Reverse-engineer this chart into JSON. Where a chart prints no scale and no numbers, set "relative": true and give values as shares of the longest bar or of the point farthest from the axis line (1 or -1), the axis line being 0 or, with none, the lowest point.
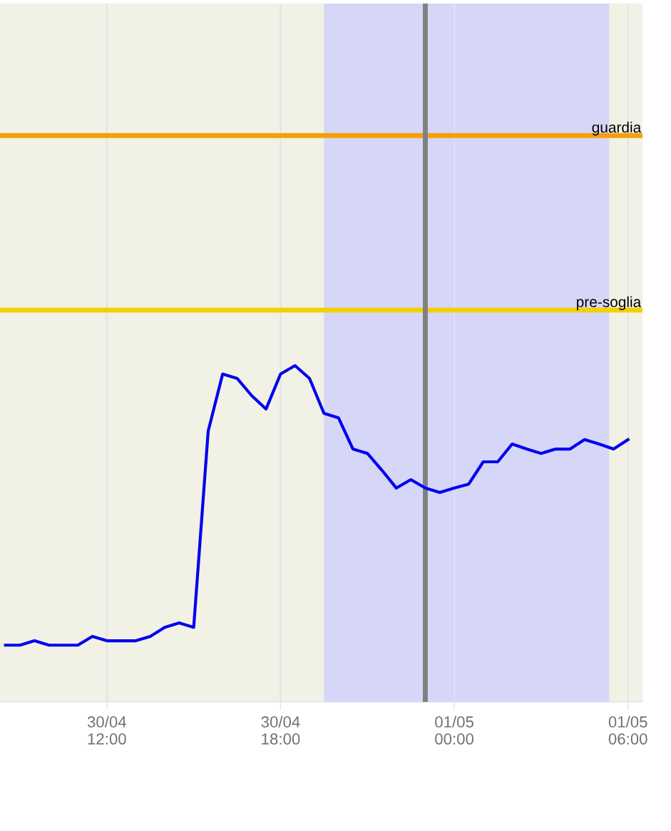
{
  "chart_data": {
    "type": "line",
    "relative": true,
    "categories": [
      null,
      null,
      null,
      null,
      null,
      null,
      null,
      "30/04\n12:00",
      null,
      null,
      null,
      null,
      null,
      null,
      null,
      null,
      null,
      null,
      null,
      "30/04\n18:00",
      null,
      null,
      null,
      null,
      null,
      null,
      null,
      null,
      null,
      null,
      null,
      "01/05\n00:00",
      null,
      null,
      null,
      null,
      null,
      null,
      null,
      null,
      null,
      null,
      null,
      "01/05\n06:00"
    ],
    "series": [
      {
        "color": "#0000ee",
        "values": [
          0.169,
          0.169,
          0.182,
          0.169,
          0.169,
          0.169,
          0.195,
          0.182,
          0.182,
          0.182,
          0.195,
          0.222,
          0.235,
          0.222,
          0.805,
          0.975,
          0.962,
          0.911,
          0.871,
          0.975,
          1,
          0.962,
          0.858,
          0.845,
          0.752,
          0.739,
          0.689,
          0.636,
          0.661,
          0.636,
          0.623,
          0.636,
          0.648,
          0.714,
          0.714,
          0.767,
          0.752,
          0.739,
          0.752,
          0.752,
          0.78,
          0.767,
          0.752,
          0.78
        ]
      }
    ],
    "ref_lines": [
      {
        "axis": "y",
        "value": 1.684,
        "label": "guardia",
        "color": "#f5a00a"
      },
      {
        "axis": "y",
        "value": 1.165,
        "label": "pre-soglia",
        "color": "#f5d000"
      }
    ],
    "grid": "x",
    "marker": "none",
    "line_style": "solid"
  }
}
